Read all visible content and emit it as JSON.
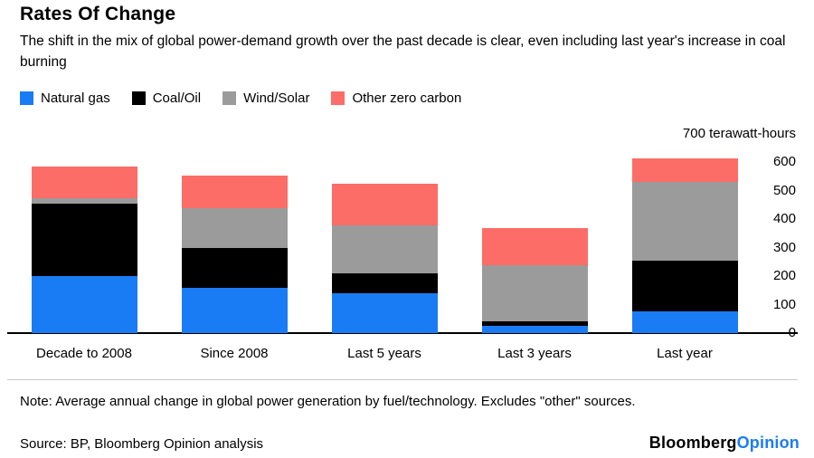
{
  "header": {
    "title": "Rates Of Change",
    "subtitle": "The shift in the mix of global power-demand growth over the past decade is clear, even including last year's increase in coal burning"
  },
  "chart_data": {
    "type": "bar",
    "stacked": true,
    "title": "Rates Of Change",
    "unit_label": "700 terawatt-hours",
    "categories": [
      "Decade to 2008",
      "Since 2008",
      "Last 5 years",
      "Last 3 years",
      "Last year"
    ],
    "series": [
      {
        "name": "Natural gas",
        "color": "#1a7cf5",
        "values": [
          200,
          160,
          140,
          25,
          75
        ]
      },
      {
        "name": "Coal/Oil",
        "color": "#000000",
        "values": [
          255,
          140,
          70,
          15,
          180
        ]
      },
      {
        "name": "Wind/Solar",
        "color": "#9b9b9b",
        "values": [
          20,
          140,
          170,
          200,
          275
        ]
      },
      {
        "name": "Other zero carbon",
        "color": "#fb6d66",
        "values": [
          110,
          115,
          145,
          130,
          85
        ]
      }
    ],
    "ylim": [
      0,
      700
    ],
    "yticks": [
      0,
      100,
      200,
      300,
      400,
      500,
      600
    ],
    "legend_position": "top",
    "grid": false
  },
  "footer": {
    "note": "Note: Average annual change in global power generation by fuel/technology. Excludes \"other\" sources.",
    "source": "Source: BP, Bloomberg Opinion analysis",
    "logo": {
      "black": "Bloomberg",
      "blue": "Opinion",
      "blue_color": "#1a7cf5"
    }
  }
}
